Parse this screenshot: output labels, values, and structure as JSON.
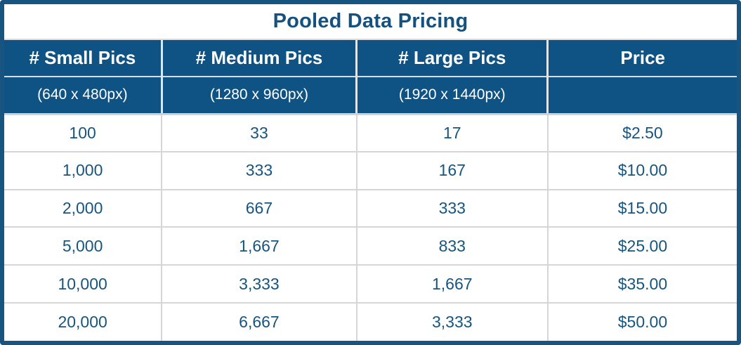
{
  "title": "Pooled Data Pricing",
  "chart_data": {
    "type": "table",
    "title": "Pooled Data Pricing",
    "columns": [
      {
        "label": "# Small Pics",
        "sublabel": "(640 x 480px)"
      },
      {
        "label": "# Medium Pics",
        "sublabel": "(1280 x 960px)"
      },
      {
        "label": "# Large Pics",
        "sublabel": "(1920 x 1440px)"
      },
      {
        "label": "Price",
        "sublabel": ""
      }
    ],
    "rows": [
      [
        "100",
        "33",
        "17",
        "$2.50"
      ],
      [
        "1,000",
        "333",
        "167",
        "$10.00"
      ],
      [
        "2,000",
        "667",
        "333",
        "$15.00"
      ],
      [
        "5,000",
        "1,667",
        "833",
        "$25.00"
      ],
      [
        "10,000",
        "3,333",
        "1,667",
        "$35.00"
      ],
      [
        "20,000",
        "6,667",
        "3,333",
        "$50.00"
      ]
    ]
  },
  "colors": {
    "header_bg": "#0F5284",
    "title_text": "#15517F",
    "data_text": "#17557F",
    "header_text": "#FFFFFF",
    "outer_border": "#175480",
    "row_separator": "#D6D6D6",
    "header_cell_separator": "#E2E6EA",
    "header_bottom_line": "#C7D5E0"
  }
}
